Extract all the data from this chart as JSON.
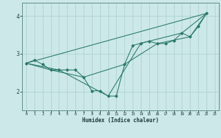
{
  "xlabel": "Humidex (Indice chaleur)",
  "bg_color": "#cce8e8",
  "line_color": "#2a7a6a",
  "grid_color": "#a8cece",
  "xlim": [
    -0.5,
    23.5
  ],
  "ylim": [
    1.5,
    4.35
  ],
  "yticks": [
    2,
    3,
    4
  ],
  "xticks": [
    0,
    1,
    2,
    3,
    4,
    5,
    6,
    7,
    8,
    9,
    10,
    11,
    12,
    13,
    14,
    15,
    16,
    17,
    18,
    19,
    20,
    21,
    22,
    23
  ],
  "series": [
    [
      0,
      2.75
    ],
    [
      1,
      2.83
    ],
    [
      2,
      2.72
    ],
    [
      3,
      2.57
    ],
    [
      4,
      2.57
    ],
    [
      5,
      2.57
    ],
    [
      6,
      2.57
    ],
    [
      7,
      2.38
    ],
    [
      8,
      2.02
    ],
    [
      9,
      2.02
    ],
    [
      10,
      1.88
    ],
    [
      11,
      1.88
    ],
    [
      12,
      2.72
    ],
    [
      13,
      3.22
    ],
    [
      14,
      3.28
    ],
    [
      15,
      3.33
    ],
    [
      16,
      3.27
    ],
    [
      17,
      3.27
    ],
    [
      18,
      3.35
    ],
    [
      19,
      3.55
    ],
    [
      20,
      3.45
    ],
    [
      21,
      3.72
    ],
    [
      22,
      4.07
    ]
  ],
  "line2": [
    [
      0,
      2.75
    ],
    [
      22,
      4.07
    ]
  ],
  "line3": [
    [
      0,
      2.75
    ],
    [
      4,
      2.57
    ],
    [
      10,
      1.88
    ],
    [
      14,
      3.28
    ],
    [
      19,
      3.55
    ],
    [
      22,
      4.07
    ]
  ],
  "line4": [
    [
      0,
      2.75
    ],
    [
      3,
      2.57
    ],
    [
      7,
      2.38
    ],
    [
      12,
      2.72
    ],
    [
      16,
      3.27
    ],
    [
      20,
      3.45
    ],
    [
      22,
      4.07
    ]
  ]
}
